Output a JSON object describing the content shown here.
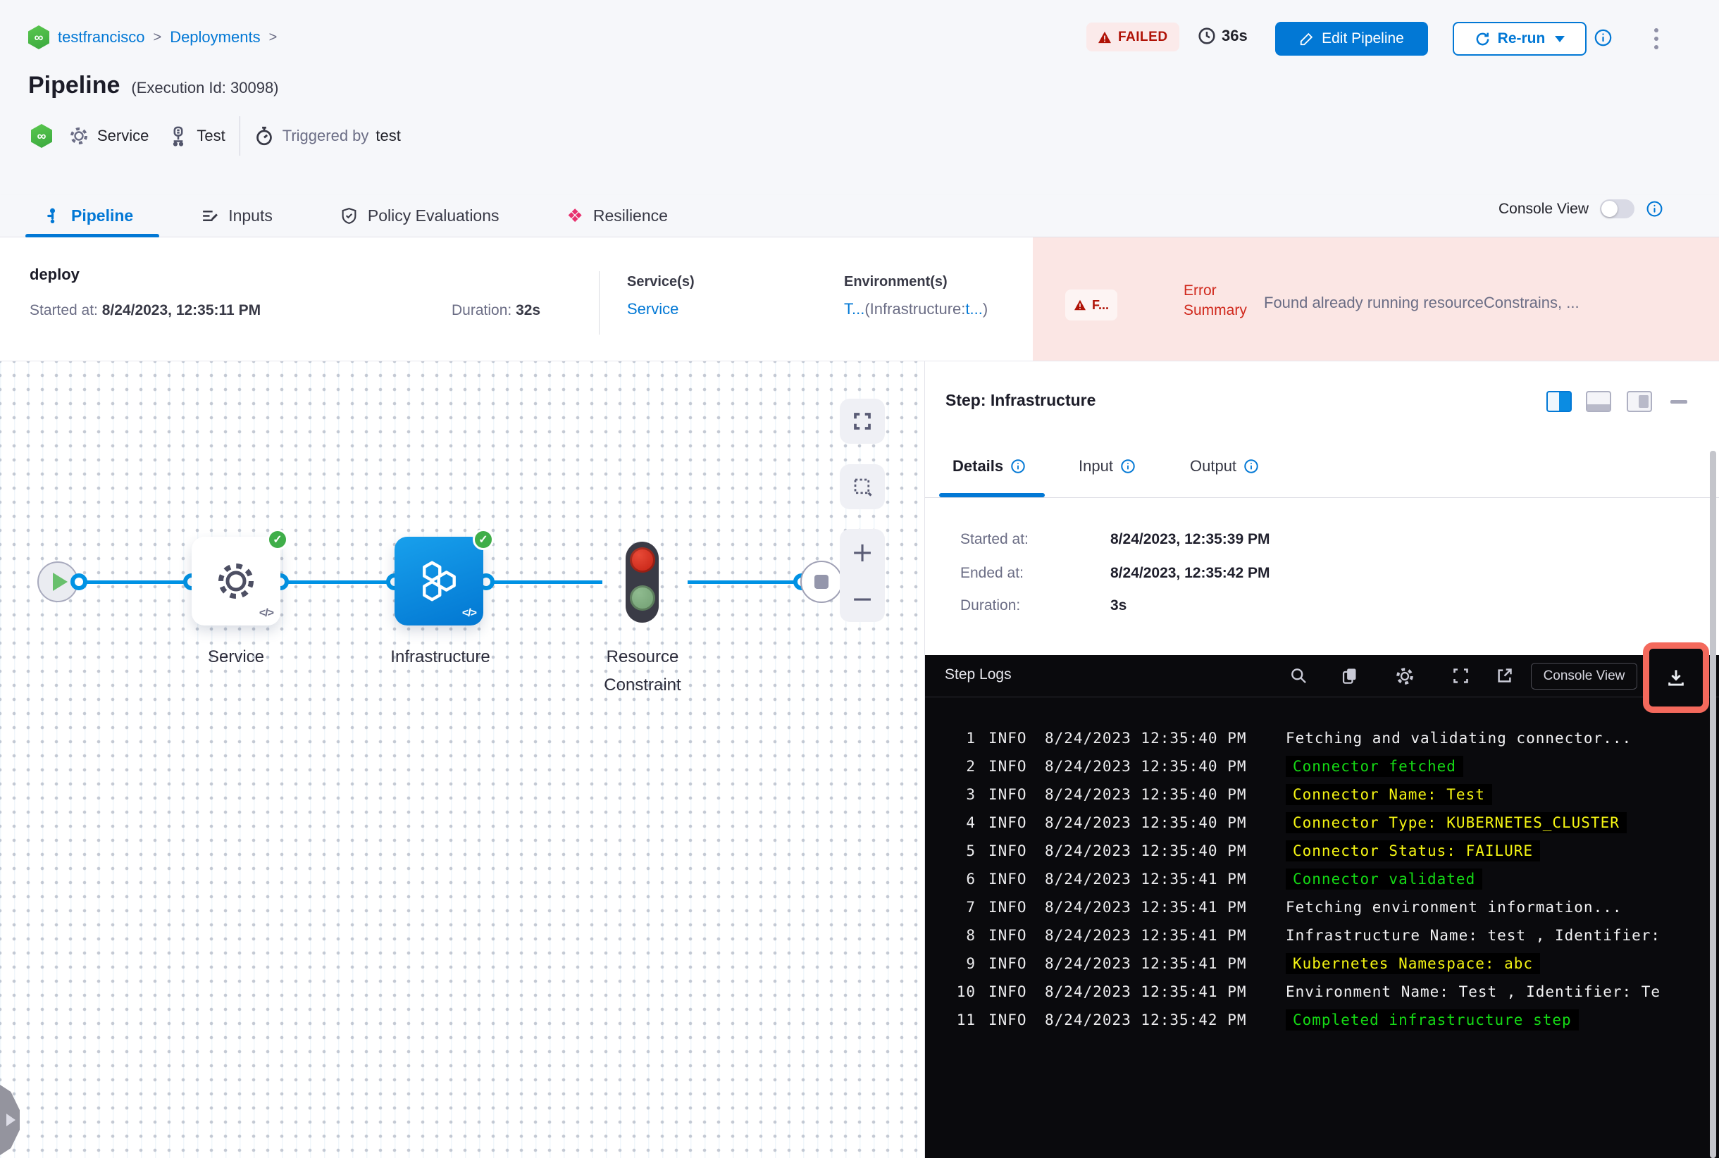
{
  "colors": {
    "accent": "#0278d5",
    "failed_red": "#b01206",
    "error_bg": "#fbe6e4",
    "node_blue": "#0b8ce2",
    "success_green": "#3fae49",
    "log_green": "#15d915",
    "log_yellow": "#f5f513",
    "annotation_red": "#f4695c"
  },
  "icons": {
    "infinity": "∞",
    "chevron": ">",
    "resilience_diamond": "❖",
    "code": "</>",
    "check": "✓",
    "plus": "+",
    "minus": "−"
  },
  "breadcrumb": {
    "account": "testfrancisco",
    "section": "Deployments"
  },
  "header": {
    "title": "Pipeline",
    "execution_id": "(Execution Id: 30098)",
    "status": "FAILED",
    "elapsed": "36s",
    "edit_button": "Edit Pipeline",
    "rerun_button": "Re-run",
    "service_name": "Service",
    "trigger_entity": "Test",
    "triggered_prefix": "Triggered by",
    "triggered_by": "test"
  },
  "tabs": [
    {
      "label": "Pipeline",
      "active": true
    },
    {
      "label": "Inputs",
      "active": false
    },
    {
      "label": "Policy Evaluations",
      "active": false
    },
    {
      "label": "Resilience",
      "active": false
    }
  ],
  "console_view": {
    "label": "Console View"
  },
  "summary": {
    "stage": "deploy",
    "started_label": "Started at:",
    "started": "8/24/2023, 12:35:11 PM",
    "duration_label": "Duration:",
    "duration": "32s",
    "services_label": "Service(s)",
    "service": "Service",
    "environments_label": "Environment(s)",
    "env_link1": "T...",
    "env_mid": "(Infrastructure:",
    "env_link2": "t...",
    "env_close": ")"
  },
  "error": {
    "badge": "F...",
    "label_line1": "Error",
    "label_line2": "Summary",
    "message": "Found already running resourceConstrains, ..."
  },
  "graph": {
    "nodes": [
      {
        "name": "Service"
      },
      {
        "name": "Infrastructure"
      },
      {
        "name": "Resource Constraint"
      }
    ]
  },
  "step_panel": {
    "title": "Step: Infrastructure",
    "tabs": [
      "Details",
      "Input",
      "Output"
    ],
    "details": {
      "started_label": "Started at:",
      "started": "8/24/2023, 12:35:39 PM",
      "ended_label": "Ended at:",
      "ended": "8/24/2023, 12:35:42 PM",
      "duration_label": "Duration:",
      "duration": "3s"
    }
  },
  "logs": {
    "title": "Step Logs",
    "console_button": "Console View",
    "lines": [
      {
        "n": "1",
        "level": "INFO",
        "time": "8/24/2023 12:35:40 PM",
        "msg": "Fetching and validating connector...",
        "color": "white"
      },
      {
        "n": "2",
        "level": "INFO",
        "time": "8/24/2023 12:35:40 PM",
        "msg": "Connector fetched",
        "color": "green"
      },
      {
        "n": "3",
        "level": "INFO",
        "time": "8/24/2023 12:35:40 PM",
        "msg": "Connector Name: Test",
        "color": "yellow"
      },
      {
        "n": "4",
        "level": "INFO",
        "time": "8/24/2023 12:35:40 PM",
        "msg": "Connector Type: KUBERNETES_CLUSTER",
        "color": "yellow"
      },
      {
        "n": "5",
        "level": "INFO",
        "time": "8/24/2023 12:35:40 PM",
        "msg": "Connector Status: FAILURE",
        "color": "yellow"
      },
      {
        "n": "6",
        "level": "INFO",
        "time": "8/24/2023 12:35:41 PM",
        "msg": "Connector validated",
        "color": "green"
      },
      {
        "n": "7",
        "level": "INFO",
        "time": "8/24/2023 12:35:41 PM",
        "msg": "Fetching environment information...",
        "color": "white"
      },
      {
        "n": "8",
        "level": "INFO",
        "time": "8/24/2023 12:35:41 PM",
        "msg": "Infrastructure Name: test , Identifier:",
        "color": "white"
      },
      {
        "n": "9",
        "level": "INFO",
        "time": "8/24/2023 12:35:41 PM",
        "msg": "Kubernetes Namespace: abc",
        "color": "yellow"
      },
      {
        "n": "10",
        "level": "INFO",
        "time": "8/24/2023 12:35:41 PM",
        "msg": "Environment Name: Test , Identifier: Te",
        "color": "white"
      },
      {
        "n": "11",
        "level": "INFO",
        "time": "8/24/2023 12:35:42 PM",
        "msg": "Completed infrastructure step",
        "color": "green"
      }
    ]
  }
}
